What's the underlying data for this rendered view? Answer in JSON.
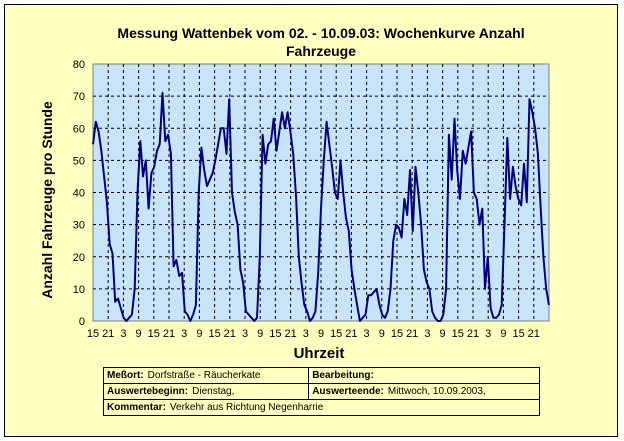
{
  "chart_data": {
    "type": "line",
    "title": "Messung Wattenbek vom 02. - 10.09.03: Wochenkurve Anzahl Fahrzeuge",
    "ylabel": "Anzahl Fahrzeuge pro Stunde",
    "xlabel": "Uhrzeit",
    "ylim": [
      0,
      80
    ],
    "yticks": [
      "0",
      "10",
      "20",
      "30",
      "40",
      "50",
      "60",
      "70",
      "80"
    ],
    "xticks": [
      "15",
      "21",
      "3",
      "9",
      "15",
      "21",
      "3",
      "9",
      "15",
      "21",
      "3",
      "9",
      "15",
      "21",
      "3",
      "9",
      "15",
      "21",
      "3",
      "9",
      "15",
      "21",
      "3",
      "9",
      "15",
      "21",
      "3",
      "9",
      "15",
      "21"
    ],
    "grid": true,
    "colors": {
      "line": "#000080",
      "plot_bg": "#c8e4f8",
      "frame_bg": "#ffffc0"
    },
    "series": [
      {
        "values": [
          55,
          62,
          59,
          53,
          45,
          37,
          24,
          21,
          6,
          7,
          4,
          1,
          0,
          1,
          2,
          10,
          40,
          56,
          45,
          50,
          35,
          46,
          48,
          53,
          55,
          71,
          56,
          58,
          52,
          17,
          19,
          14,
          15,
          3,
          2,
          0,
          2,
          5,
          40,
          54,
          47,
          42,
          44,
          46,
          50,
          55,
          60,
          60,
          52,
          69,
          40,
          34,
          30,
          16,
          12,
          3,
          2,
          1,
          0,
          1,
          20,
          58,
          49,
          55,
          56,
          63,
          53,
          59,
          65,
          60,
          65,
          59,
          52,
          39,
          20,
          12,
          5,
          3,
          0,
          1,
          3,
          15,
          35,
          50,
          62,
          55,
          48,
          40,
          38,
          50,
          40,
          32,
          28,
          16,
          10,
          5,
          0,
          1,
          2,
          8,
          8,
          9,
          10,
          5,
          2,
          1,
          3,
          10,
          25,
          30,
          29,
          26,
          38,
          33,
          47,
          28,
          48,
          40,
          30,
          16,
          12,
          10,
          3,
          1,
          0,
          0,
          2,
          10,
          58,
          44,
          63,
          47,
          38,
          53,
          49,
          54,
          59,
          40,
          38,
          30,
          35,
          10,
          20,
          4,
          1,
          1,
          2,
          5,
          30,
          57,
          38,
          48,
          42,
          38,
          36,
          49,
          37,
          69,
          65,
          60,
          52,
          35,
          20,
          10,
          5
        ]
      }
    ]
  },
  "info": {
    "messort_label": "Meßort:",
    "messort_value": "Dorfstraße - Räucherkate",
    "bearbeitung_label": "Bearbeitung:",
    "bearbeitung_value": "",
    "auswertebeginn_label": "Auswertebeginn:",
    "auswertebeginn_value": "Dienstag,",
    "auswerteende_label": "Auswerteende:",
    "auswerteende_value": "Mittwoch, 10.09.2003,",
    "kommentar_label": "Kommentar:",
    "kommentar_value": "Verkehr aus Richtung Negenharrie"
  }
}
